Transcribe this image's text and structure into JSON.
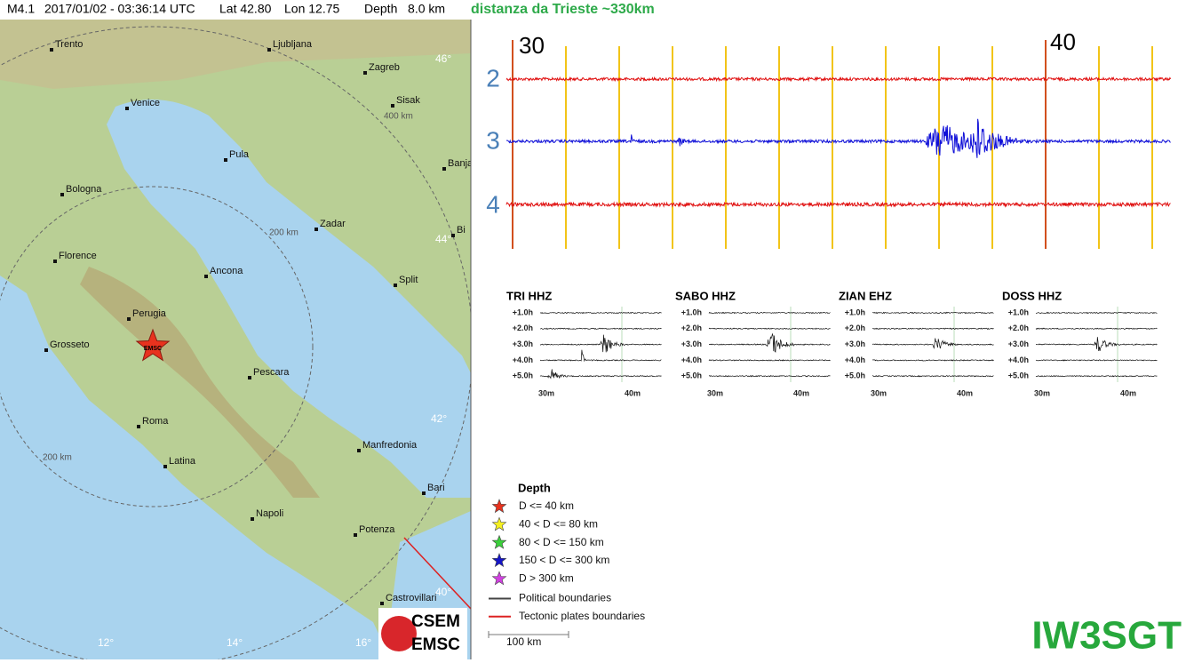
{
  "header": {
    "magnitude": "M4.1",
    "datetime": "2017/01/02 - 03:36:14 UTC",
    "lat": "Lat 42.80",
    "lon": "Lon 12.75",
    "depth": "Depth   8.0 km",
    "distance": "distanza da Trieste ~330km"
  },
  "map": {
    "cities": [
      "Trento",
      "Ljubljana",
      "Zagreb",
      "Sisak",
      "Venice",
      "Pula",
      "Banja",
      "Bologna",
      "Zadar",
      "Bi",
      "Florence",
      "Ancona",
      "Split",
      "Perugia",
      "Grosseto",
      "Pescara",
      "Roma",
      "Manfredonia",
      "Latina",
      "Bari",
      "Napoli",
      "Potenza",
      "Castrovillari"
    ],
    "latitudes": [
      "46°",
      "44°",
      "42°",
      "40°"
    ],
    "longitudes": [
      "12°",
      "14°",
      "16°"
    ],
    "rings": [
      "400 km",
      "200 km",
      "200 km"
    ],
    "epicenter": "EMSC",
    "scale": "100 km",
    "logo": [
      "CSEM",
      "EMSC"
    ]
  },
  "seismogram": {
    "minutes": [
      "30",
      "40"
    ],
    "channels": [
      "2",
      "3",
      "4"
    ]
  },
  "stations": {
    "names": [
      "TRI HHZ",
      "SABO HHZ",
      "ZIAN EHZ",
      "DOSS HHZ"
    ],
    "hours": [
      "+1.0h",
      "+2.0h",
      "+3.0h",
      "+4.0h",
      "+5.0h"
    ],
    "minutes": [
      "30m",
      "40m"
    ]
  },
  "legend": {
    "title": "Depth",
    "items": [
      "D <= 40 km",
      "40 < D <= 80 km",
      "80 < D <= 150 km",
      "150 < D <= 300 km",
      "D > 300 km",
      "Political boundaries",
      "Tectonic plates boundaries"
    ]
  },
  "callsign": "IW3SGT"
}
